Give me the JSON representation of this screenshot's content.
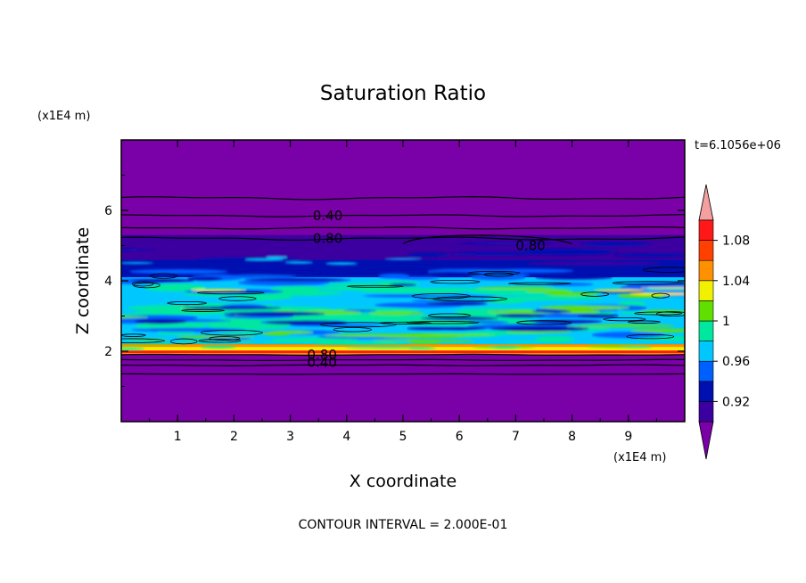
{
  "chart_data": {
    "type": "heatmap",
    "title": "Saturation Ratio",
    "xlabel": "X coordinate",
    "ylabel": "Z coordinate",
    "x_unit": "(x1E4 m)",
    "y_unit": "(x1E4 m)",
    "time_label": "t=6.1056e+06",
    "footer": "CONTOUR INTERVAL = 2.000E-01",
    "xlim": [
      0,
      10
    ],
    "ylim": [
      0,
      8
    ],
    "x_ticks": [
      "1",
      "2",
      "3",
      "4",
      "5",
      "6",
      "7",
      "8",
      "9"
    ],
    "y_ticks": [
      "2",
      "4",
      "6"
    ],
    "colorbar": {
      "labels": [
        "0.92",
        "0.96",
        "1",
        "1.04",
        "1.08"
      ],
      "colors": [
        "#7a00a8",
        "#3c00a0",
        "#0010b0",
        "#0060ff",
        "#00c8ff",
        "#00e8a0",
        "#60e000",
        "#f0f000",
        "#ff9000",
        "#ff4000",
        "#ff1818",
        "#f4a0a0"
      ],
      "levels": [
        0.9,
        0.92,
        0.94,
        0.96,
        0.98,
        1.0,
        1.02,
        1.04,
        1.06,
        1.08,
        1.1
      ],
      "extend": "both"
    },
    "contour_labels": [
      "0.40",
      "0.80",
      "0.80",
      "0.80",
      "0.40"
    ],
    "background_color": "#7a00a8",
    "field_bands": [
      {
        "z0": 0,
        "z1": 1.9,
        "value": 0.3
      },
      {
        "z0": 1.9,
        "z1": 2.2,
        "value": 1.06
      },
      {
        "z0": 2.2,
        "z1": 4.6,
        "value": 0.98
      },
      {
        "z0": 4.6,
        "z1": 5.3,
        "value": 0.92
      },
      {
        "z0": 5.3,
        "z1": 8,
        "value": 0.3
      }
    ]
  }
}
